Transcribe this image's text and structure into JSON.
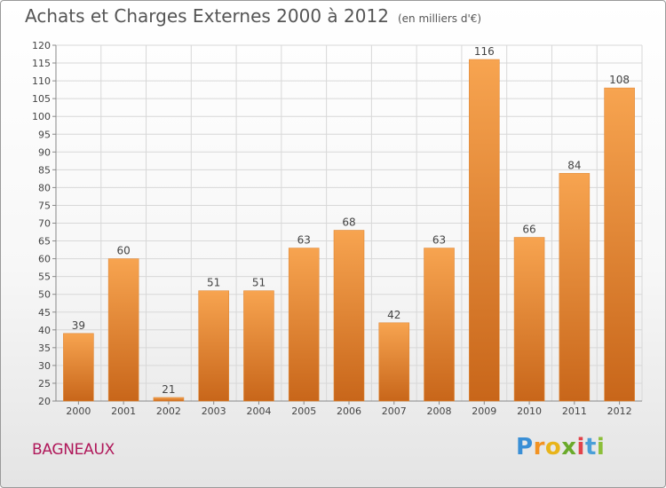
{
  "title": "Achats et Charges Externes 2000 à 2012",
  "unit_note": "(en milliers d'€)",
  "city": "BAGNEAUX",
  "brand_logo": "Proxiti",
  "colors": {
    "bar_light": "#f7a450",
    "bar_dark": "#c8661a",
    "grid": "#d8d8d8",
    "city": "#b0185a"
  },
  "chart_data": {
    "type": "bar",
    "categories": [
      "2000",
      "2001",
      "2002",
      "2003",
      "2004",
      "2005",
      "2006",
      "2007",
      "2008",
      "2009",
      "2010",
      "2011",
      "2012"
    ],
    "values": [
      39,
      60,
      21,
      51,
      51,
      63,
      68,
      42,
      63,
      116,
      66,
      84,
      108
    ],
    "ylim": [
      20,
      120
    ],
    "yticks": [
      20,
      25,
      30,
      35,
      40,
      45,
      50,
      55,
      60,
      65,
      70,
      75,
      80,
      85,
      90,
      95,
      100,
      105,
      110,
      115,
      120
    ],
    "grid": true,
    "data_labels": true
  }
}
